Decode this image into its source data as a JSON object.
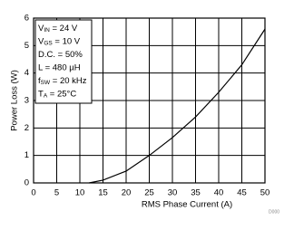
{
  "chart_data": {
    "type": "line",
    "x_label": "RMS Phase Current (A)",
    "y_label": "Power Loss (W)",
    "x": [
      12,
      15,
      20,
      25,
      30,
      35,
      40,
      45,
      50
    ],
    "series": [
      {
        "name": "Power Loss",
        "color": "#000000",
        "values": [
          0,
          0.1,
          0.43,
          1.0,
          1.65,
          2.4,
          3.3,
          4.3,
          5.6
        ]
      }
    ],
    "xlim": [
      0,
      50
    ],
    "xticks": [
      0,
      5,
      10,
      15,
      20,
      25,
      30,
      35,
      40,
      45,
      50
    ],
    "ylim": [
      0,
      6
    ],
    "yticks": [
      0,
      1,
      2,
      3,
      4,
      5,
      6
    ],
    "grid": true,
    "annotations": [
      {
        "symbol": "V",
        "subscript": "IN",
        "text": " = 24 V"
      },
      {
        "symbol": "V",
        "subscript": "GS",
        "text": " = 10 V"
      },
      {
        "text": "D.C. = 50%"
      },
      {
        "text": "L = 480 µH"
      },
      {
        "symbol": "f",
        "subscript": "SW",
        "text": " = 20 kHz"
      },
      {
        "symbol": "T",
        "subscript": "A",
        "text": " = 25°C"
      }
    ],
    "figure_code": "D000"
  }
}
